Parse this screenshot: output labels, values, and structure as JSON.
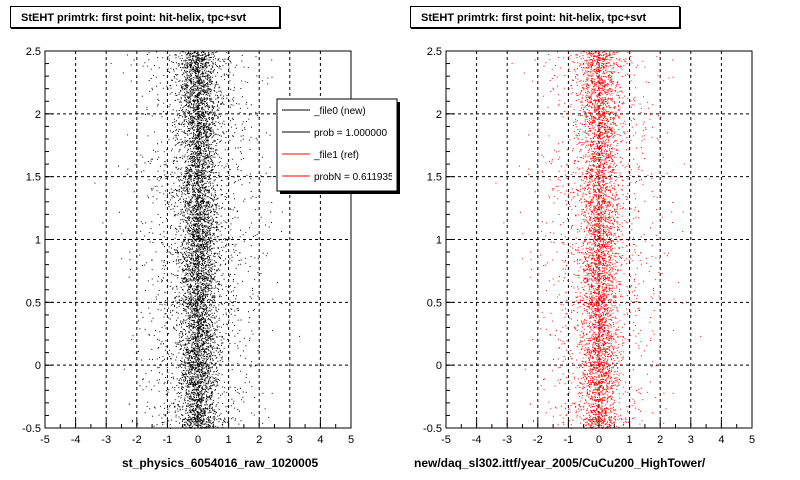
{
  "chart_data": [
    {
      "type": "scatter",
      "title": "StEHT primtrk: first point: hit-helix, tpc+svt",
      "xlabel": "st_physics_6054016_raw_1020005",
      "ylabel": "",
      "xlim": [
        -5,
        5
      ],
      "ylim": [
        -0.5,
        2.5
      ],
      "x_ticks": [
        "-5",
        "-4",
        "-3",
        "-2",
        "-1",
        "0",
        "1",
        "2",
        "3",
        "4",
        "5"
      ],
      "y_ticks": [
        "-0.5",
        "0",
        "0.5",
        "1",
        "1.5",
        "2",
        "2.5"
      ],
      "grid": true,
      "marker_color": "#000000",
      "distribution": {
        "x_center": 0.0,
        "x_core_width": 0.3,
        "x_tail_width": 1.0,
        "y_range": [
          -0.5,
          2.5
        ]
      },
      "legend": {
        "placement": "top-right",
        "entries": [
          {
            "label": "_file0 (new)",
            "color": "#000000"
          },
          {
            "label": "prob = 1.000000",
            "color": "#000000"
          },
          {
            "label": "_file1 (ref)",
            "color": "#ff0000"
          },
          {
            "label": "probN = 0.611935",
            "color": "#ff0000"
          }
        ]
      }
    },
    {
      "type": "scatter",
      "title": "StEHT primtrk: first point: hit-helix, tpc+svt",
      "xlabel": "new/daq_sl302.ittf/year_2005/CuCu200_HighTower/",
      "ylabel": "",
      "xlim": [
        -5,
        5
      ],
      "ylim": [
        -0.5,
        2.5
      ],
      "x_ticks": [
        "-5",
        "-4",
        "-3",
        "-2",
        "-1",
        "0",
        "1",
        "2",
        "3",
        "4",
        "5"
      ],
      "y_ticks": [
        "-0.5",
        "0",
        "0.5",
        "1",
        "1.5",
        "2",
        "2.5"
      ],
      "grid": true,
      "marker_color": "#ff0000",
      "distribution": {
        "x_center": 0.0,
        "x_core_width": 0.3,
        "x_tail_width": 1.0,
        "y_range": [
          -0.5,
          2.5
        ]
      }
    }
  ]
}
